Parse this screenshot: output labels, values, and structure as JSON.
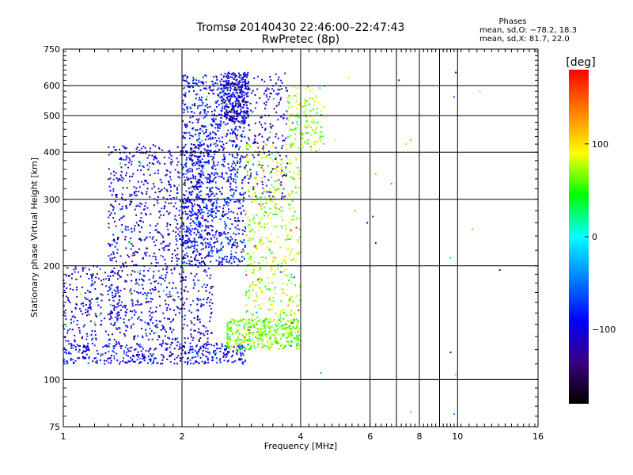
{
  "chart_data": {
    "type": "scatter",
    "title": "Tromsø 20140430 22:46:00–22:47:43",
    "subtitle": "RwPretec (8p)",
    "xlabel": "Frequency [MHz]",
    "ylabel": "Stationary phase Virtual Height [km]",
    "x_scale": "log",
    "y_scale": "log",
    "xlim": [
      1,
      16
    ],
    "ylim": [
      75,
      750
    ],
    "x_ticks": [
      1,
      2,
      4,
      6,
      8,
      10,
      16
    ],
    "x_tick_labels": [
      "1",
      "2",
      "4",
      "6",
      "8",
      "10",
      "16"
    ],
    "x_gridlines": [
      2,
      4,
      6,
      7,
      8,
      9,
      10
    ],
    "y_ticks": [
      75,
      100,
      200,
      300,
      400,
      500,
      600,
      750
    ],
    "y_tick_labels": [
      "75",
      "100",
      "200",
      "300",
      "400",
      "500",
      "600",
      "750"
    ],
    "y_gridlines": [
      100,
      200,
      300,
      400,
      500,
      600
    ],
    "grid": true,
    "phase_box": {
      "title": "Phases",
      "line_o": "mean, sd,O: −78.2, 18.3",
      "line_x": "mean, sd,X:  81.7, 22.0"
    },
    "colorbar": {
      "label": "[deg]",
      "range": [
        -180,
        180
      ],
      "ticks": [
        -100,
        0,
        100
      ],
      "tick_labels": [
        "−100",
        "0",
        "100"
      ],
      "colors": [
        "#000000",
        "#3a0080",
        "#0000ff",
        "#0080ff",
        "#00ffff",
        "#00ff00",
        "#ffff00",
        "#ff8000",
        "#ff0000"
      ]
    },
    "clusters": [
      {
        "name": "o-low-trace",
        "fmin": 1.0,
        "fmax": 2.9,
        "hmin": 110,
        "hmax": 125,
        "phase": -95,
        "count": 420
      },
      {
        "name": "o-main-band",
        "fmin": 1.3,
        "fmax": 2.4,
        "hmin": 125,
        "hmax": 420,
        "phase": -100,
        "count": 1100
      },
      {
        "name": "o-low-freq",
        "fmin": 1.0,
        "fmax": 1.4,
        "hmin": 125,
        "hmax": 200,
        "phase": -100,
        "count": 220
      },
      {
        "name": "o-upper-band",
        "fmin": 2.0,
        "fmax": 2.9,
        "hmin": 200,
        "hmax": 640,
        "phase": -88,
        "count": 1100
      },
      {
        "name": "o-cusp",
        "fmin": 2.5,
        "fmax": 2.95,
        "hmin": 480,
        "hmax": 650,
        "phase": -105,
        "count": 300
      },
      {
        "name": "o-high",
        "fmin": 2.9,
        "fmax": 3.7,
        "hmin": 300,
        "hmax": 650,
        "phase": -105,
        "count": 200
      },
      {
        "name": "x-low-trace",
        "fmin": 2.6,
        "fmax": 4.0,
        "hmin": 120,
        "hmax": 145,
        "phase": 65,
        "count": 420
      },
      {
        "name": "x-rising",
        "fmin": 2.9,
        "fmax": 4.0,
        "hmin": 145,
        "hmax": 420,
        "phase": 75,
        "count": 450
      },
      {
        "name": "x-top",
        "fmin": 3.7,
        "fmax": 4.6,
        "hmin": 400,
        "hmax": 600,
        "phase": 70,
        "count": 140
      }
    ],
    "outliers": [
      {
        "f": 4.9,
        "h": 430,
        "phase": 100
      },
      {
        "f": 5.3,
        "h": 630,
        "phase": 80
      },
      {
        "f": 5.5,
        "h": 280,
        "phase": 60
      },
      {
        "f": 6.1,
        "h": 270,
        "phase": -110
      },
      {
        "f": 6.2,
        "h": 350,
        "phase": 120
      },
      {
        "f": 6.2,
        "h": 230,
        "phase": -100
      },
      {
        "f": 6.8,
        "h": 330,
        "phase": 150
      },
      {
        "f": 7.1,
        "h": 620,
        "phase": -105
      },
      {
        "f": 7.4,
        "h": 420,
        "phase": 110
      },
      {
        "f": 7.6,
        "h": 430,
        "phase": 130
      },
      {
        "f": 9.8,
        "h": 560,
        "phase": -60
      },
      {
        "f": 9.9,
        "h": 650,
        "phase": -90
      },
      {
        "f": 9.6,
        "h": 210,
        "phase": -20
      },
      {
        "f": 10.9,
        "h": 250,
        "phase": 130
      },
      {
        "f": 11.4,
        "h": 580,
        "phase": 110
      },
      {
        "f": 12.8,
        "h": 195,
        "phase": -150
      },
      {
        "f": 9.6,
        "h": 118,
        "phase": -120
      },
      {
        "f": 9.9,
        "h": 103,
        "phase": 120
      },
      {
        "f": 7.6,
        "h": 82,
        "phase": 130
      },
      {
        "f": 9.8,
        "h": 81,
        "phase": -40
      },
      {
        "f": 4.5,
        "h": 104,
        "phase": -40
      },
      {
        "f": 5.9,
        "h": 260,
        "phase": -110
      }
    ]
  }
}
